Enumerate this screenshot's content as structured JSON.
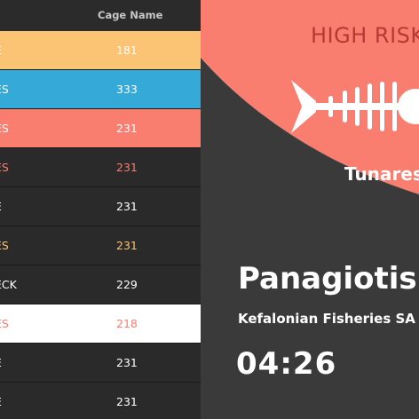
{
  "table": {
    "header": {
      "cage_name": "Cage Name"
    },
    "rows": [
      {
        "species": "E",
        "cage": "181",
        "bg": "#fbc374",
        "fg": "#ffffff"
      },
      {
        "species": "ES",
        "cage": "333",
        "bg": "#35a9d8",
        "fg": "#ffffff"
      },
      {
        "species": "ES",
        "cage": "231",
        "bg": "#f97e70",
        "fg": "#ffffff"
      },
      {
        "species": "ES",
        "cage": "231",
        "bg": "#2a2a2a",
        "fg": "#f97e70"
      },
      {
        "species": "E",
        "cage": "231",
        "bg": "#2a2a2a",
        "fg": "#ffffff"
      },
      {
        "species": "ES",
        "cage": "231",
        "bg": "#2a2a2a",
        "fg": "#fbc374"
      },
      {
        "species": "ECK",
        "cage": "229",
        "bg": "#2a2a2a",
        "fg": "#ffffff"
      },
      {
        "species": "ES",
        "cage": "218",
        "bg": "#ffffff",
        "fg": "#f97e70"
      },
      {
        "species": "E",
        "cage": "231",
        "bg": "#2a2a2a",
        "fg": "#ffffff"
      },
      {
        "species": "E",
        "cage": "231",
        "bg": "#2a2a2a",
        "fg": "#ffffff"
      }
    ]
  },
  "detail": {
    "risk_label": "HIGH RISK",
    "species": "Tunares",
    "person": "Panagiotis",
    "company": "Kefalonian Fisheries SA",
    "timer": "04:26",
    "icon": "fish-skeleton-icon",
    "accent": "#f97e70",
    "risk_text_color": "#b63a33"
  }
}
